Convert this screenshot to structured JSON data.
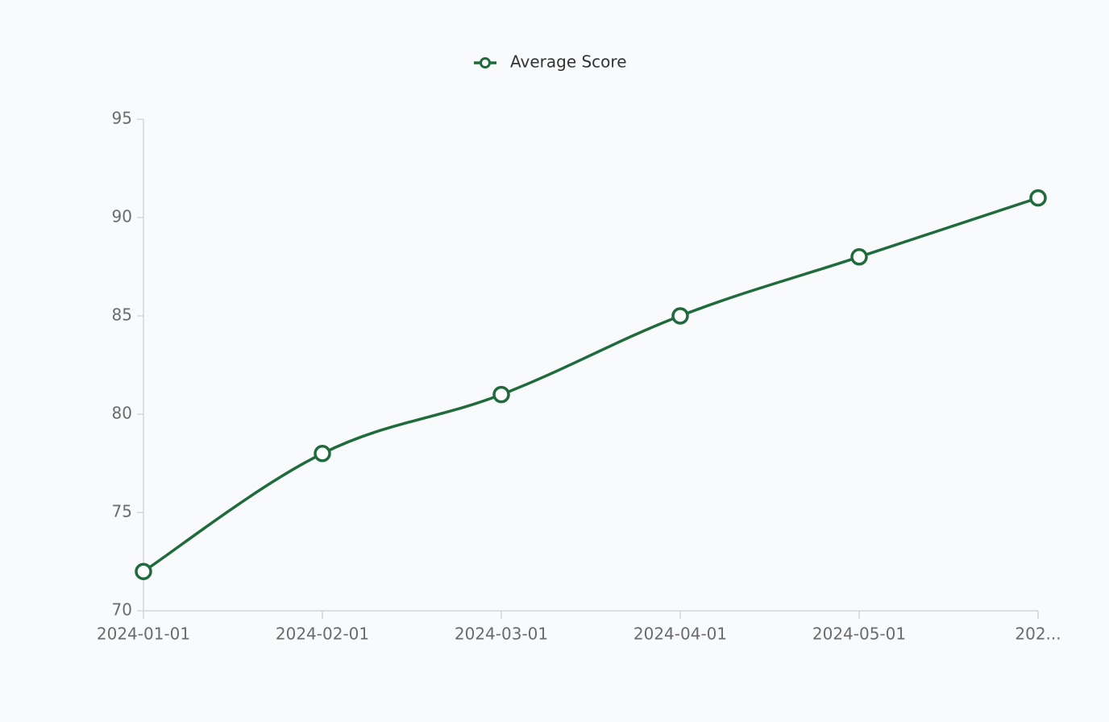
{
  "chart_data": {
    "type": "line",
    "categories": [
      "2024-01-01",
      "2024-02-01",
      "2024-03-01",
      "2024-04-01",
      "2024-05-01",
      "202..."
    ],
    "series": [
      {
        "name": "Average Score",
        "color": "#1f6b3c",
        "values": [
          72,
          78,
          81,
          85,
          88,
          91
        ]
      }
    ],
    "ylim": [
      70,
      95
    ],
    "yticks": [
      70,
      75,
      80,
      85,
      90,
      95
    ],
    "grid": false,
    "legend": "top"
  }
}
